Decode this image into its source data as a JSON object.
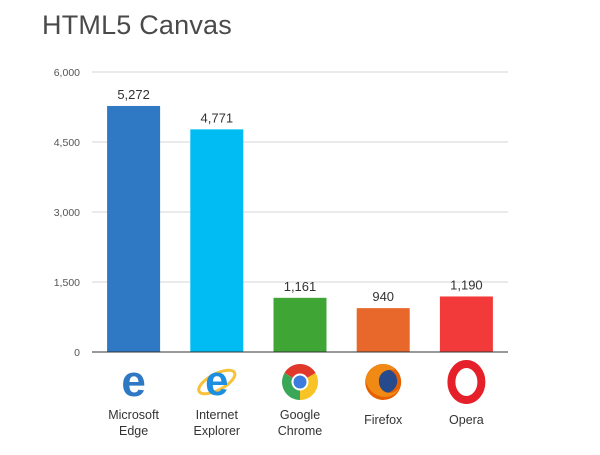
{
  "chart_data": {
    "type": "bar",
    "title": "HTML5 Canvas",
    "xlabel": "",
    "ylabel": "",
    "ylim": [
      0,
      6000
    ],
    "yticks": [
      0,
      1500,
      3000,
      4500,
      6000
    ],
    "ytick_labels": [
      "0",
      "1,500",
      "3,000",
      "4,500",
      "6,000"
    ],
    "grid": true,
    "categories": [
      {
        "line1": "Microsoft",
        "line2": "Edge",
        "icon": "edge-icon"
      },
      {
        "line1": "Internet",
        "line2": "Explorer",
        "icon": "internet-explorer-icon"
      },
      {
        "line1": "Google",
        "line2": "Chrome",
        "icon": "chrome-icon"
      },
      {
        "line1": "Firefox",
        "line2": "",
        "icon": "firefox-icon"
      },
      {
        "line1": "Opera",
        "line2": "",
        "icon": "opera-icon"
      }
    ],
    "values": [
      5272,
      4771,
      1161,
      940,
      1190
    ],
    "value_labels": [
      "5,272",
      "4,771",
      "1,161",
      "940",
      "1,190"
    ],
    "colors": [
      "#2f78c4",
      "#00bcf2",
      "#3fa535",
      "#e8672a",
      "#f23a3a"
    ]
  }
}
